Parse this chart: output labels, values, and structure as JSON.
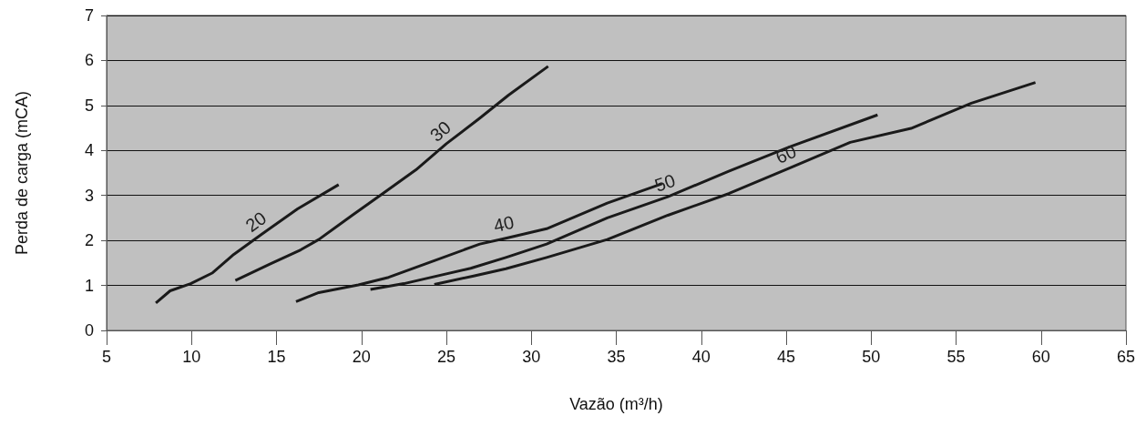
{
  "chart_data": {
    "type": "line",
    "xlabel": "Vazão (m³/h)",
    "ylabel": "Perda de carga (mCA)",
    "xlim": [
      5,
      65
    ],
    "xticks": [
      5,
      10,
      15,
      20,
      25,
      30,
      35,
      40,
      45,
      50,
      55,
      60,
      65
    ],
    "ylim": [
      0,
      7
    ],
    "yticks": [
      0,
      1,
      2,
      3,
      4,
      5,
      6,
      7
    ],
    "grid": "y",
    "legend": false,
    "marker": "none",
    "line_style": "solid",
    "series": [
      {
        "name": "20",
        "color": "#1a1a1a",
        "x": [
          7.9,
          8.74,
          9.95,
          11.24,
          12.49,
          14.1,
          16.24,
          18.66
        ],
        "values": [
          0.61,
          0.88,
          1.04,
          1.28,
          1.69,
          2.13,
          2.7,
          3.24
        ]
      },
      {
        "name": "30",
        "color": "#1a1a1a",
        "x": [
          12.58,
          14.64,
          16.42,
          17.49,
          19.46,
          21.25,
          23.21,
          25.0,
          26.97,
          28.66,
          30.99
        ],
        "values": [
          1.11,
          1.48,
          1.79,
          2.02,
          2.56,
          3.04,
          3.57,
          4.15,
          4.72,
          5.23,
          5.87
        ]
      },
      {
        "name": "40",
        "color": "#1a1a1a",
        "x": [
          16.15,
          17.49,
          19.82,
          21.6,
          24.29,
          26.97,
          28.5,
          30.9,
          34.47,
          37.69
        ],
        "values": [
          0.64,
          0.84,
          1.01,
          1.18,
          1.55,
          1.92,
          2.05,
          2.26,
          2.83,
          3.26
        ]
      },
      {
        "name": "50",
        "color": "#1a1a1a",
        "x": [
          20.53,
          22.5,
          26.43,
          28.5,
          30.9,
          34.47,
          38.04,
          41.62,
          45.2,
          50.38
        ],
        "values": [
          0.91,
          1.04,
          1.38,
          1.62,
          1.92,
          2.5,
          2.97,
          3.54,
          4.08,
          4.79
        ]
      },
      {
        "name": "60",
        "color": "#1a1a1a",
        "x": [
          24.29,
          26.6,
          28.5,
          30.9,
          34.47,
          38.04,
          41.62,
          45.2,
          48.77,
          52.35,
          55.9,
          59.67
        ],
        "values": [
          1.02,
          1.21,
          1.37,
          1.62,
          2.02,
          2.56,
          3.04,
          3.61,
          4.18,
          4.49,
          5.05,
          5.51
        ]
      }
    ]
  }
}
